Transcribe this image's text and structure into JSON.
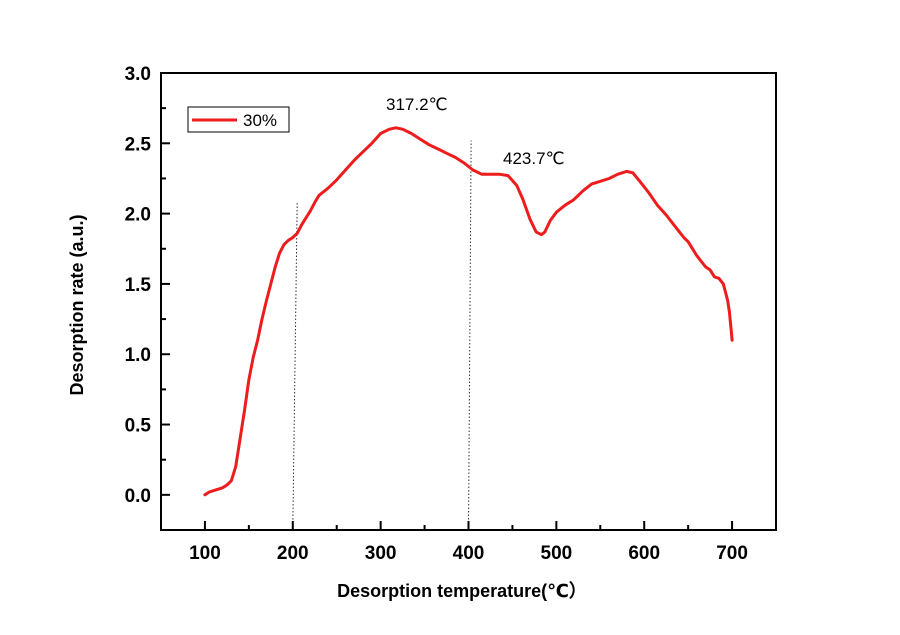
{
  "chart_data": {
    "type": "line",
    "title": "",
    "xlabel": "Desorption temperature(℃）",
    "ylabel": "Desorption rate (a.u.)",
    "xlim": [
      50,
      750
    ],
    "ylim": [
      -0.25,
      3.0
    ],
    "x_ticks": [
      100,
      200,
      300,
      400,
      500,
      600,
      700
    ],
    "y_ticks": [
      0.0,
      0.5,
      1.0,
      1.5,
      2.0,
      2.5,
      3.0
    ],
    "x_tick_labels": [
      "100",
      "200",
      "300",
      "400",
      "500",
      "600",
      "700"
    ],
    "y_tick_labels": [
      "0.0",
      "0.5",
      "1.0",
      "1.5",
      "2.0",
      "2.5",
      "3.0"
    ],
    "grid": false,
    "legend_position": "top-left",
    "series": [
      {
        "name": "30%",
        "color": "#ee1c1c",
        "x": [
          100,
          105,
          110,
          115,
          120,
          125,
          130,
          135,
          140,
          145,
          150,
          155,
          160,
          165,
          170,
          175,
          180,
          185,
          190,
          195,
          200,
          205,
          210,
          215,
          220,
          225,
          230,
          240,
          250,
          260,
          270,
          280,
          290,
          300,
          310,
          317.2,
          325,
          335,
          345,
          355,
          365,
          375,
          385,
          395,
          405,
          415,
          425,
          435,
          445,
          455,
          462,
          470,
          477,
          483,
          487,
          493,
          500,
          510,
          520,
          530,
          540,
          550,
          560,
          570,
          580,
          587,
          595,
          605,
          615,
          625,
          635,
          645,
          650,
          660,
          670,
          675,
          680,
          685,
          690,
          693,
          695,
          697,
          699,
          700
        ],
        "y": [
          0.0,
          0.02,
          0.03,
          0.04,
          0.05,
          0.07,
          0.1,
          0.2,
          0.4,
          0.6,
          0.82,
          0.98,
          1.1,
          1.25,
          1.38,
          1.5,
          1.62,
          1.72,
          1.78,
          1.81,
          1.83,
          1.86,
          1.92,
          1.97,
          2.02,
          2.08,
          2.13,
          2.18,
          2.24,
          2.31,
          2.38,
          2.44,
          2.5,
          2.57,
          2.6,
          2.61,
          2.6,
          2.57,
          2.53,
          2.49,
          2.46,
          2.43,
          2.4,
          2.36,
          2.31,
          2.28,
          2.28,
          2.28,
          2.27,
          2.2,
          2.1,
          1.96,
          1.87,
          1.85,
          1.87,
          1.95,
          2.01,
          2.06,
          2.1,
          2.16,
          2.21,
          2.23,
          2.25,
          2.28,
          2.3,
          2.29,
          2.23,
          2.15,
          2.06,
          1.99,
          1.91,
          1.83,
          1.8,
          1.7,
          1.62,
          1.6,
          1.55,
          1.54,
          1.5,
          1.43,
          1.38,
          1.3,
          1.17,
          1.1
        ]
      }
    ],
    "annotations": [
      {
        "text": "317.2℃",
        "x": 317.2
      },
      {
        "text": "423.7℃",
        "x": 423.7
      }
    ],
    "reference_lines": [
      {
        "style": "dotted",
        "x_start": 200,
        "x_end": 205,
        "y_start": -0.25,
        "y_end": 2.08
      },
      {
        "style": "dotted",
        "x_start": 400,
        "x_end": 403,
        "y_start": -0.25,
        "y_end": 2.52
      }
    ]
  }
}
